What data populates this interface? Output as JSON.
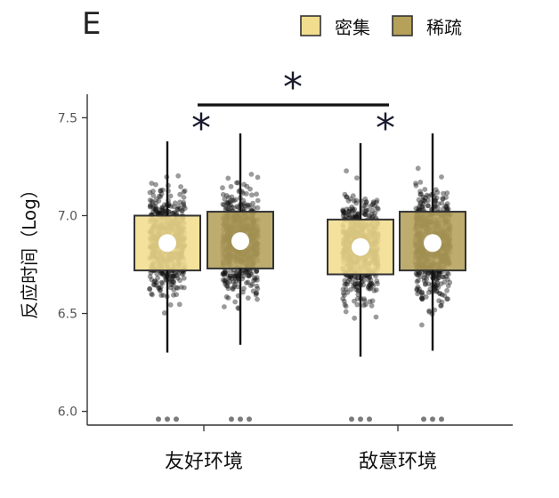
{
  "chart_data": {
    "type": "box",
    "panel_label": "E",
    "ylabel": "反应时间（Log）",
    "ylim": [
      5.93,
      7.62
    ],
    "yticks": [
      6.0,
      6.5,
      7.0,
      7.5
    ],
    "ytick_labels": [
      "6.0",
      "6.5",
      "7.0",
      "7.5"
    ],
    "categories": [
      "友好环境",
      "敌意环境"
    ],
    "legend": {
      "placement": "top-right",
      "entries": [
        {
          "label": "密集",
          "color": "#f1dd8e"
        },
        {
          "label": "稀疏",
          "color": "#b5a15a"
        }
      ]
    },
    "series": [
      {
        "name": "密集",
        "color": "#f1dd8e",
        "boxes": [
          {
            "category": "友好环境",
            "q1": 6.72,
            "q3": 7.0,
            "mean": 6.86,
            "whisker_low": 6.3,
            "whisker_high": 7.38
          },
          {
            "category": "敌意环境",
            "q1": 6.7,
            "q3": 6.98,
            "mean": 6.84,
            "whisker_low": 6.28,
            "whisker_high": 7.37
          }
        ]
      },
      {
        "name": "稀疏",
        "color": "#b5a15a",
        "boxes": [
          {
            "category": "友好环境",
            "q1": 6.73,
            "q3": 7.02,
            "mean": 6.87,
            "whisker_low": 6.34,
            "whisker_high": 7.42
          },
          {
            "category": "敌意环境",
            "q1": 6.72,
            "q3": 7.02,
            "mean": 6.86,
            "whisker_low": 6.31,
            "whisker_high": 7.42
          }
        ]
      }
    ],
    "significance": [
      {
        "between": "密集 vs 稀疏 (友好环境)",
        "label": "*"
      },
      {
        "between": "密集 vs 稀疏 (敌意环境)",
        "label": "*"
      },
      {
        "between": "友好环境 vs 敌意环境",
        "label": "*"
      }
    ],
    "grid": false
  },
  "colors": {
    "axis": "#333333",
    "box_edge": "#333333",
    "dot": "#111111",
    "mean_marker": "#ffffff"
  }
}
